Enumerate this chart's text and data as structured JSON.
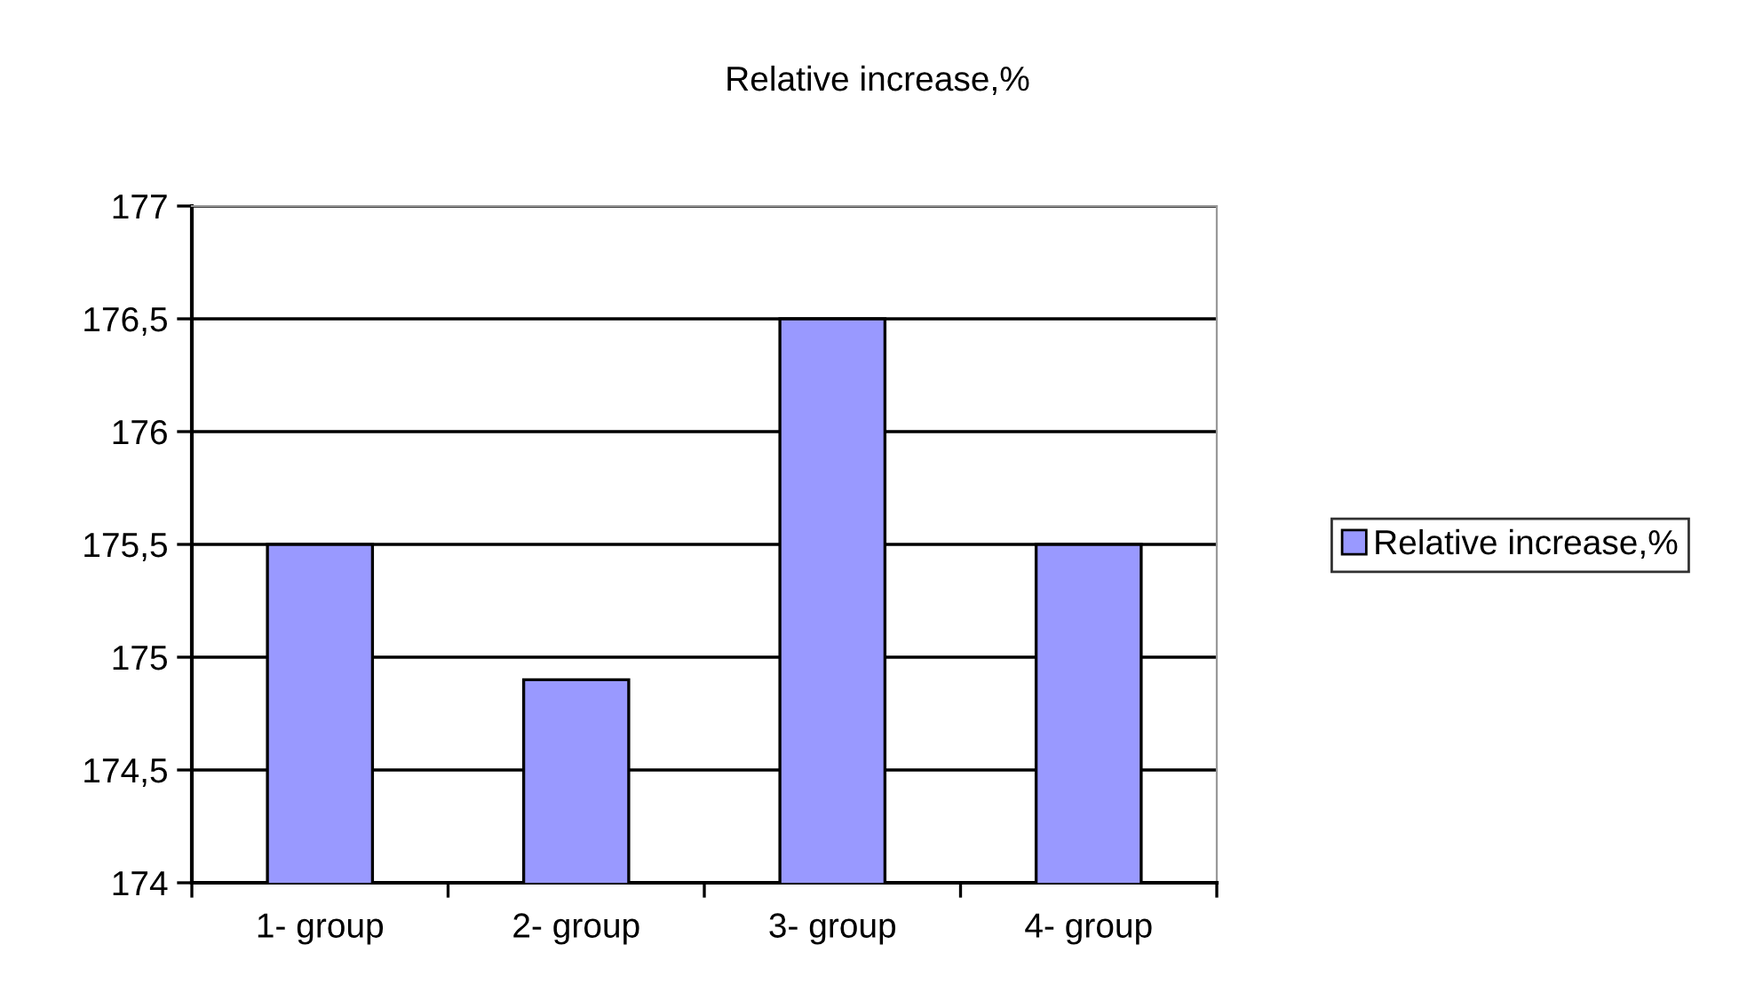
{
  "chart_data": {
    "type": "bar",
    "title": "Relative increase,%",
    "categories": [
      "1- group",
      "2- group",
      "3- group",
      "4- group"
    ],
    "series": [
      {
        "name": "Relative increase,%",
        "color": "#9999ff",
        "values": [
          175.5,
          174.9,
          176.5,
          175.5
        ]
      }
    ],
    "ylim": [
      174,
      177
    ],
    "yticks": [
      174,
      {
        "value": 174.5,
        "label": "174,5"
      },
      175,
      {
        "value": 175.5,
        "label": "175,5"
      },
      176,
      {
        "value": 176.5,
        "label": "176,5"
      },
      177
    ],
    "grid": "y",
    "legend": "right"
  }
}
